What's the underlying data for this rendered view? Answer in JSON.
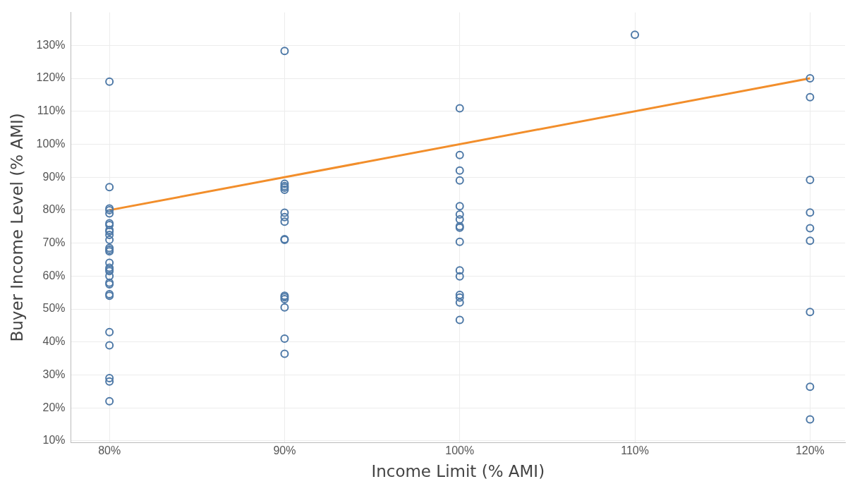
{
  "chart_data": {
    "type": "scatter",
    "xlabel": "Income Limit (% AMI)",
    "ylabel": "Buyer Income Level (% AMI)",
    "xlim": [
      77.8,
      122
    ],
    "xticks": [
      {
        "value": 80,
        "label": "80%"
      },
      {
        "value": 90,
        "label": "90%"
      },
      {
        "value": 100,
        "label": "100%"
      },
      {
        "value": 110,
        "label": "110%"
      },
      {
        "value": 120,
        "label": "120%"
      }
    ],
    "ylim": [
      9.5,
      140
    ],
    "yticks": [
      {
        "value": 10,
        "label": "10%"
      },
      {
        "value": 20,
        "label": "20%"
      },
      {
        "value": 30,
        "label": "30%"
      },
      {
        "value": 40,
        "label": "40%"
      },
      {
        "value": 50,
        "label": "50%"
      },
      {
        "value": 60,
        "label": "60%"
      },
      {
        "value": 70,
        "label": "70%"
      },
      {
        "value": 80,
        "label": "80%"
      },
      {
        "value": 90,
        "label": "90%"
      },
      {
        "value": 100,
        "label": "100%"
      },
      {
        "value": 110,
        "label": "110%"
      },
      {
        "value": 120,
        "label": "120%"
      },
      {
        "value": 130,
        "label": "130%"
      }
    ],
    "grid": true,
    "legend": false,
    "marker": "circle",
    "series": [
      {
        "type": "scatter",
        "color": "#4e79a7",
        "x": [
          80,
          80,
          80,
          80,
          80,
          80,
          80,
          80,
          80,
          80,
          80,
          80,
          80,
          80,
          80,
          80,
          80,
          80,
          80,
          80,
          80,
          80,
          80,
          80,
          80,
          80,
          80,
          80,
          90,
          90,
          90,
          90,
          90,
          90,
          90,
          90,
          90,
          90,
          90,
          90,
          90,
          90,
          90,
          90,
          100,
          100,
          100,
          100,
          100,
          100,
          100,
          100,
          100,
          100,
          100,
          100,
          100,
          100,
          100,
          100,
          110,
          120,
          120,
          120,
          120,
          120,
          120,
          120,
          120,
          120
        ],
        "values": [
          119,
          87,
          80.5,
          80,
          79,
          76,
          75.5,
          74,
          73.5,
          72.5,
          71,
          68.5,
          68,
          67.5,
          64,
          62.5,
          62,
          61.5,
          60,
          58,
          57.5,
          54.5,
          54,
          43,
          39,
          29,
          28,
          22,
          128.3,
          88,
          87.3,
          86.8,
          86.2,
          79.2,
          77.9,
          76.5,
          71.2,
          71,
          54,
          53.6,
          53,
          50.5,
          41,
          36.4,
          110.9,
          96.7,
          92,
          89,
          81.2,
          78.7,
          77.2,
          75.1,
          74.7,
          70.4,
          61.7,
          59.9,
          54.3,
          53.5,
          52,
          46.7,
          133.2,
          120,
          114.3,
          89.2,
          79.3,
          74.5,
          70.7,
          49.1,
          26.4,
          16.5
        ]
      },
      {
        "type": "line",
        "color": "#f28e2b",
        "x": [
          80,
          120
        ],
        "values": [
          80,
          120
        ],
        "marker": "none",
        "line_style": "solid"
      }
    ]
  }
}
